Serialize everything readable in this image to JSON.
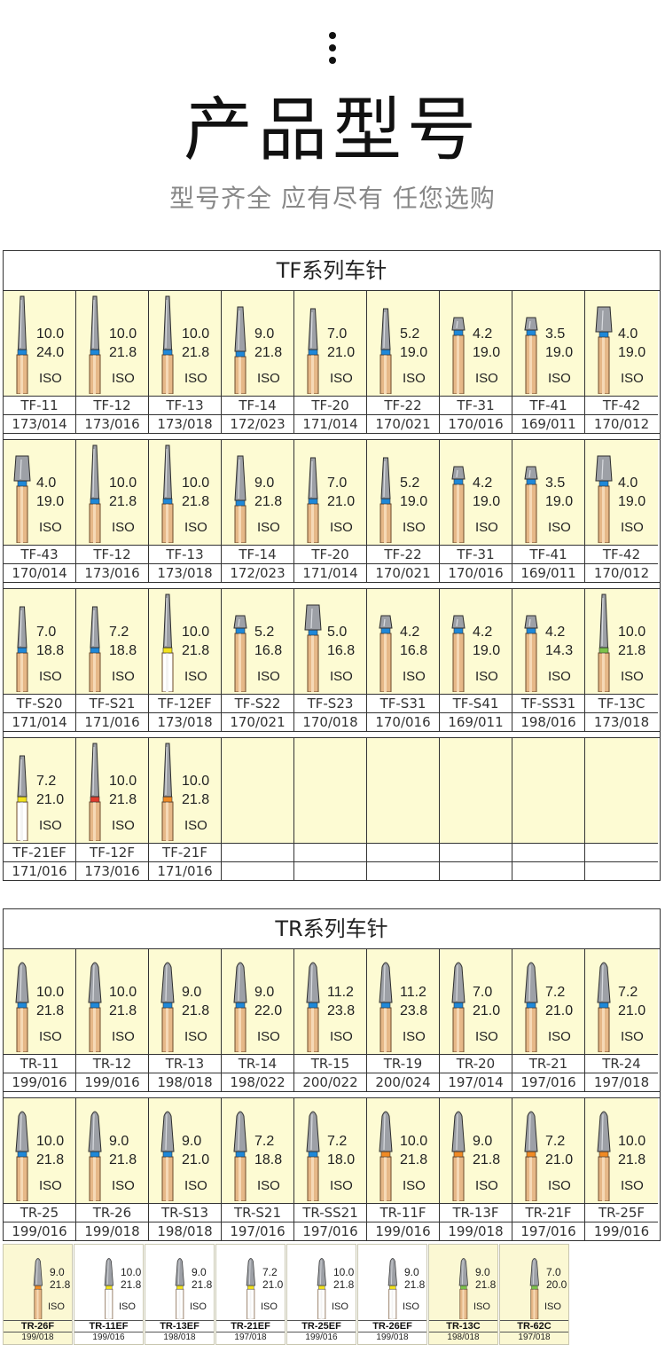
{
  "header": {
    "title": "产品型号",
    "subtitle": "型号齐全 应有尽有 任您选购"
  },
  "colors": {
    "cell_bg": "#fdfbd3",
    "band_blue": "#1e88d9",
    "band_yellow": "#f2e21c",
    "band_orange": "#f08a24",
    "band_green": "#7cc24a",
    "band_red": "#e03c2c"
  },
  "tf": {
    "title": "TF系列车针",
    "rows": [
      [
        {
          "code": "TF-11",
          "iso": "173/014",
          "v1": "10.0",
          "v2": "24.0",
          "band": "blue",
          "shape": "thin"
        },
        {
          "code": "TF-12",
          "iso": "173/016",
          "v1": "10.0",
          "v2": "21.8",
          "band": "blue",
          "shape": "thin"
        },
        {
          "code": "TF-13",
          "iso": "173/018",
          "v1": "10.0",
          "v2": "21.8",
          "band": "blue",
          "shape": "thin"
        },
        {
          "code": "TF-14",
          "iso": "172/023",
          "v1": "9.0",
          "v2": "21.8",
          "band": "blue",
          "shape": "mid"
        },
        {
          "code": "TF-20",
          "iso": "171/014",
          "v1": "7.0",
          "v2": "21.0",
          "band": "blue",
          "shape": "short"
        },
        {
          "code": "TF-22",
          "iso": "170/021",
          "v1": "5.2",
          "v2": "19.0",
          "band": "blue",
          "shape": "short"
        },
        {
          "code": "TF-31",
          "iso": "170/016",
          "v1": "4.2",
          "v2": "19.0",
          "band": "blue",
          "shape": "stub"
        },
        {
          "code": "TF-41",
          "iso": "169/011",
          "v1": "3.5",
          "v2": "19.0",
          "band": "blue",
          "shape": "stub"
        },
        {
          "code": "TF-42",
          "iso": "170/012",
          "v1": "4.0",
          "v2": "19.0",
          "band": "blue",
          "shape": "wide"
        }
      ],
      [
        {
          "code": "TF-43",
          "iso": "170/014",
          "v1": "4.0",
          "v2": "19.0",
          "band": "blue",
          "shape": "wide"
        },
        {
          "code": "TF-12",
          "iso": "173/016",
          "v1": "10.0",
          "v2": "21.8",
          "band": "blue",
          "shape": "thin"
        },
        {
          "code": "TF-13",
          "iso": "173/018",
          "v1": "10.0",
          "v2": "21.8",
          "band": "blue",
          "shape": "thin"
        },
        {
          "code": "TF-14",
          "iso": "172/023",
          "v1": "9.0",
          "v2": "21.8",
          "band": "blue",
          "shape": "mid"
        },
        {
          "code": "TF-20",
          "iso": "171/014",
          "v1": "7.0",
          "v2": "21.0",
          "band": "blue",
          "shape": "short"
        },
        {
          "code": "TF-22",
          "iso": "170/021",
          "v1": "5.2",
          "v2": "19.0",
          "band": "blue",
          "shape": "short"
        },
        {
          "code": "TF-31",
          "iso": "170/016",
          "v1": "4.2",
          "v2": "19.0",
          "band": "blue",
          "shape": "stub"
        },
        {
          "code": "TF-41",
          "iso": "169/011",
          "v1": "3.5",
          "v2": "19.0",
          "band": "blue",
          "shape": "stub"
        },
        {
          "code": "TF-42",
          "iso": "170/012",
          "v1": "4.0",
          "v2": "19.0",
          "band": "blue",
          "shape": "wide"
        }
      ],
      [
        {
          "code": "TF-S20",
          "iso": "171/014",
          "v1": "7.0",
          "v2": "18.8",
          "band": "blue",
          "shape": "short"
        },
        {
          "code": "TF-S21",
          "iso": "171/016",
          "v1": "7.2",
          "v2": "18.8",
          "band": "blue",
          "shape": "short"
        },
        {
          "code": "TF-12EF",
          "iso": "173/018",
          "v1": "10.0",
          "v2": "21.8",
          "band": "yellow",
          "shape": "thin"
        },
        {
          "code": "TF-S22",
          "iso": "170/021",
          "v1": "5.2",
          "v2": "16.8",
          "band": "blue",
          "shape": "stub"
        },
        {
          "code": "TF-S23",
          "iso": "170/018",
          "v1": "5.0",
          "v2": "16.8",
          "band": "blue",
          "shape": "wide"
        },
        {
          "code": "TF-S31",
          "iso": "170/016",
          "v1": "4.2",
          "v2": "16.8",
          "band": "blue",
          "shape": "stub"
        },
        {
          "code": "TF-S41",
          "iso": "169/011",
          "v1": "4.2",
          "v2": "19.0",
          "band": "blue",
          "shape": "stub"
        },
        {
          "code": "TF-SS31",
          "iso": "198/016",
          "v1": "4.2",
          "v2": "14.3",
          "band": "blue",
          "shape": "stub"
        },
        {
          "code": "TF-13C",
          "iso": "173/018",
          "v1": "10.0",
          "v2": "21.8",
          "band": "green",
          "shape": "thin"
        }
      ],
      [
        {
          "code": "TF-21EF",
          "iso": "171/016",
          "v1": "7.2",
          "v2": "21.0",
          "band": "yellow",
          "shape": "short"
        },
        {
          "code": "TF-12F",
          "iso": "173/016",
          "v1": "10.0",
          "v2": "21.8",
          "band": "red",
          "shape": "thin"
        },
        {
          "code": "TF-21F",
          "iso": "171/016",
          "v1": "10.0",
          "v2": "21.8",
          "band": "orange",
          "shape": "thin"
        }
      ]
    ]
  },
  "tr": {
    "title": "TR系列车针",
    "rows": [
      [
        {
          "code": "TR-11",
          "iso": "199/016",
          "v1": "10.0",
          "v2": "21.8",
          "band": "blue",
          "shape": "round"
        },
        {
          "code": "TR-12",
          "iso": "199/016",
          "v1": "10.0",
          "v2": "21.8",
          "band": "blue",
          "shape": "round"
        },
        {
          "code": "TR-13",
          "iso": "198/018",
          "v1": "9.0",
          "v2": "21.8",
          "band": "blue",
          "shape": "round"
        },
        {
          "code": "TR-14",
          "iso": "198/022",
          "v1": "9.0",
          "v2": "22.0",
          "band": "blue",
          "shape": "round"
        },
        {
          "code": "TR-15",
          "iso": "200/022",
          "v1": "11.2",
          "v2": "23.8",
          "band": "blue",
          "shape": "round"
        },
        {
          "code": "TR-19",
          "iso": "200/024",
          "v1": "11.2",
          "v2": "23.8",
          "band": "blue",
          "shape": "round"
        },
        {
          "code": "TR-20",
          "iso": "197/014",
          "v1": "7.0",
          "v2": "21.0",
          "band": "blue",
          "shape": "round"
        },
        {
          "code": "TR-21",
          "iso": "197/016",
          "v1": "7.2",
          "v2": "21.0",
          "band": "blue",
          "shape": "round"
        },
        {
          "code": "TR-24",
          "iso": "197/018",
          "v1": "7.2",
          "v2": "21.0",
          "band": "blue",
          "shape": "round"
        }
      ],
      [
        {
          "code": "TR-25",
          "iso": "199/016",
          "v1": "10.0",
          "v2": "21.8",
          "band": "blue",
          "shape": "round"
        },
        {
          "code": "TR-26",
          "iso": "199/018",
          "v1": "9.0",
          "v2": "21.8",
          "band": "blue",
          "shape": "round"
        },
        {
          "code": "TR-S13",
          "iso": "198/018",
          "v1": "9.0",
          "v2": "21.0",
          "band": "blue",
          "shape": "round"
        },
        {
          "code": "TR-S21",
          "iso": "197/016",
          "v1": "7.2",
          "v2": "18.8",
          "band": "blue",
          "shape": "round"
        },
        {
          "code": "TR-SS21",
          "iso": "197/016",
          "v1": "7.2",
          "v2": "18.0",
          "band": "blue",
          "shape": "round"
        },
        {
          "code": "TR-11F",
          "iso": "199/016",
          "v1": "10.0",
          "v2": "21.8",
          "band": "orange",
          "shape": "round"
        },
        {
          "code": "TR-13F",
          "iso": "199/018",
          "v1": "9.0",
          "v2": "21.8",
          "band": "orange",
          "shape": "round"
        },
        {
          "code": "TR-21F",
          "iso": "197/016",
          "v1": "7.2",
          "v2": "21.0",
          "band": "orange",
          "shape": "round"
        },
        {
          "code": "TR-25F",
          "iso": "199/016",
          "v1": "10.0",
          "v2": "21.8",
          "band": "orange",
          "shape": "round"
        }
      ]
    ]
  },
  "strip": [
    {
      "code": "TR-26F",
      "iso": "199/018",
      "v1": "9.0",
      "v2": "21.8",
      "band": "orange",
      "bg": "yellow"
    },
    {
      "code": "TR-11EF",
      "iso": "199/016",
      "v1": "10.0",
      "v2": "21.8",
      "band": "yellow",
      "bg": "white"
    },
    {
      "code": "TR-13EF",
      "iso": "198/018",
      "v1": "9.0",
      "v2": "21.8",
      "band": "yellow",
      "bg": "white"
    },
    {
      "code": "TR-21EF",
      "iso": "197/018",
      "v1": "7.2",
      "v2": "21.0",
      "band": "yellow",
      "bg": "white"
    },
    {
      "code": "TR-25EF",
      "iso": "199/016",
      "v1": "10.0",
      "v2": "21.8",
      "band": "yellow",
      "bg": "white"
    },
    {
      "code": "TR-26EF",
      "iso": "199/018",
      "v1": "9.0",
      "v2": "21.8",
      "band": "yellow",
      "bg": "white"
    },
    {
      "code": "TR-13C",
      "iso": "198/018",
      "v1": "9.0",
      "v2": "21.8",
      "band": "green",
      "bg": "yellow"
    },
    {
      "code": "TR-62C",
      "iso": "197/018",
      "v1": "7.0",
      "v2": "20.0",
      "band": "green",
      "bg": "yellow"
    }
  ],
  "iso_label": "ISO"
}
